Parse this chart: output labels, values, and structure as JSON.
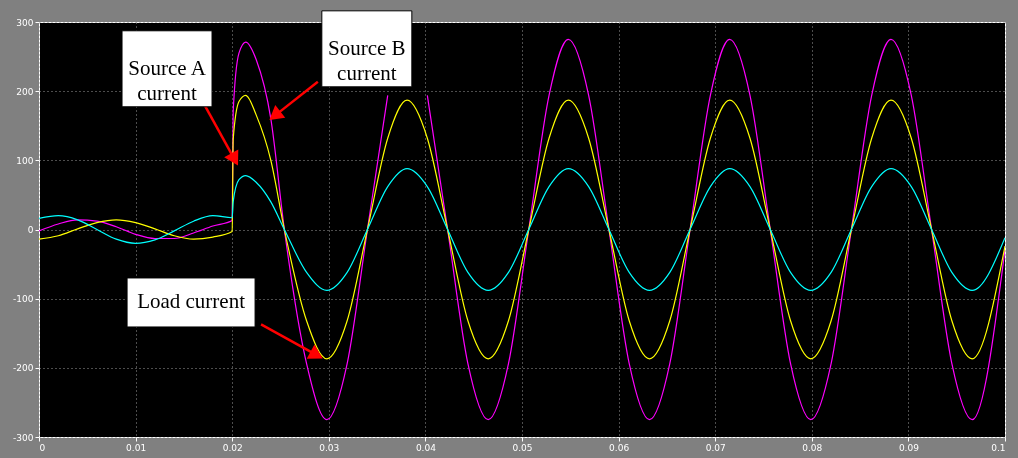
{
  "chart_data": {
    "type": "line",
    "x": [
      0,
      0.002,
      0.004,
      0.006,
      0.008,
      0.01,
      0.012,
      0.014,
      0.016,
      0.018,
      0.02,
      0.0201,
      0.0207,
      0.0214,
      0.0225,
      0.024,
      0.0254,
      0.0277,
      0.0298,
      0.0319,
      0.034,
      0.0361,
      0.0381,
      0.0402,
      0.0423,
      0.0444,
      0.0465,
      0.0486,
      0.0507,
      0.0528,
      0.0548,
      0.0569,
      0.059,
      0.0611,
      0.0632,
      0.0653,
      0.0674,
      0.0695,
      0.0715,
      0.0736,
      0.0757,
      0.0778,
      0.0799,
      0.082,
      0.0841,
      0.0862,
      0.0882,
      0.0903,
      0.0924,
      0.0945,
      0.0966,
      0.1
    ],
    "series": [
      {
        "color": "#ff00ff",
        "values": [
          -2,
          8,
          14,
          12,
          4,
          -7,
          -13,
          -13,
          -5,
          5,
          13,
          170,
          255,
          271,
          245,
          160,
          0,
          -194,
          -275,
          -194,
          0,
          194,
          null,
          194,
          0,
          -194,
          -275,
          -194,
          0,
          194,
          275,
          194,
          0,
          -194,
          -275,
          -194,
          0,
          194,
          275,
          194,
          0,
          -194,
          -275,
          -194,
          0,
          194,
          275,
          194,
          0,
          -194,
          -275,
          -29
        ]
      },
      {
        "color": "#ffff00",
        "values": [
          -14,
          -9,
          1,
          10,
          14,
          10,
          1,
          -9,
          -14,
          -11,
          -3,
          130,
          185,
          194,
          165,
          100,
          0,
          -132,
          -187,
          -132,
          0,
          132,
          187,
          132,
          0,
          -132,
          -187,
          -132,
          0,
          132,
          187,
          132,
          0,
          -132,
          -187,
          -132,
          0,
          132,
          187,
          132,
          0,
          -132,
          -187,
          -132,
          0,
          132,
          187,
          132,
          0,
          -132,
          -187,
          -24
        ]
      },
      {
        "color": "#00ffff",
        "values": [
          16,
          20,
          14,
          0,
          -14,
          -20,
          -15,
          -2,
          12,
          20,
          17,
          40,
          72,
          78,
          68,
          40,
          0,
          -62,
          -88,
          -62,
          0,
          62,
          88,
          62,
          0,
          -62,
          -88,
          -62,
          0,
          62,
          88,
          62,
          0,
          -62,
          -88,
          -62,
          0,
          62,
          88,
          62,
          0,
          -62,
          -88,
          -62,
          0,
          62,
          88,
          62,
          0,
          -62,
          -88,
          -12
        ]
      }
    ],
    "xlim": [
      0,
      0.1
    ],
    "xticks": [
      0,
      0.01,
      0.02,
      0.03,
      0.04,
      0.05,
      0.06,
      0.07,
      0.08,
      0.09,
      0.1
    ],
    "ylim": [
      -300,
      300
    ],
    "yticks": [
      -300,
      -200,
      -100,
      0,
      100,
      200,
      300
    ],
    "grid": true,
    "annotations": [
      {
        "text": "Source A\ncurrent",
        "x": 0.0205,
        "y": 95
      },
      {
        "text": "Source B\ncurrent",
        "x": 0.024,
        "y": 160
      },
      {
        "text": "Load current",
        "x": 0.0292,
        "y": -185
      }
    ]
  }
}
